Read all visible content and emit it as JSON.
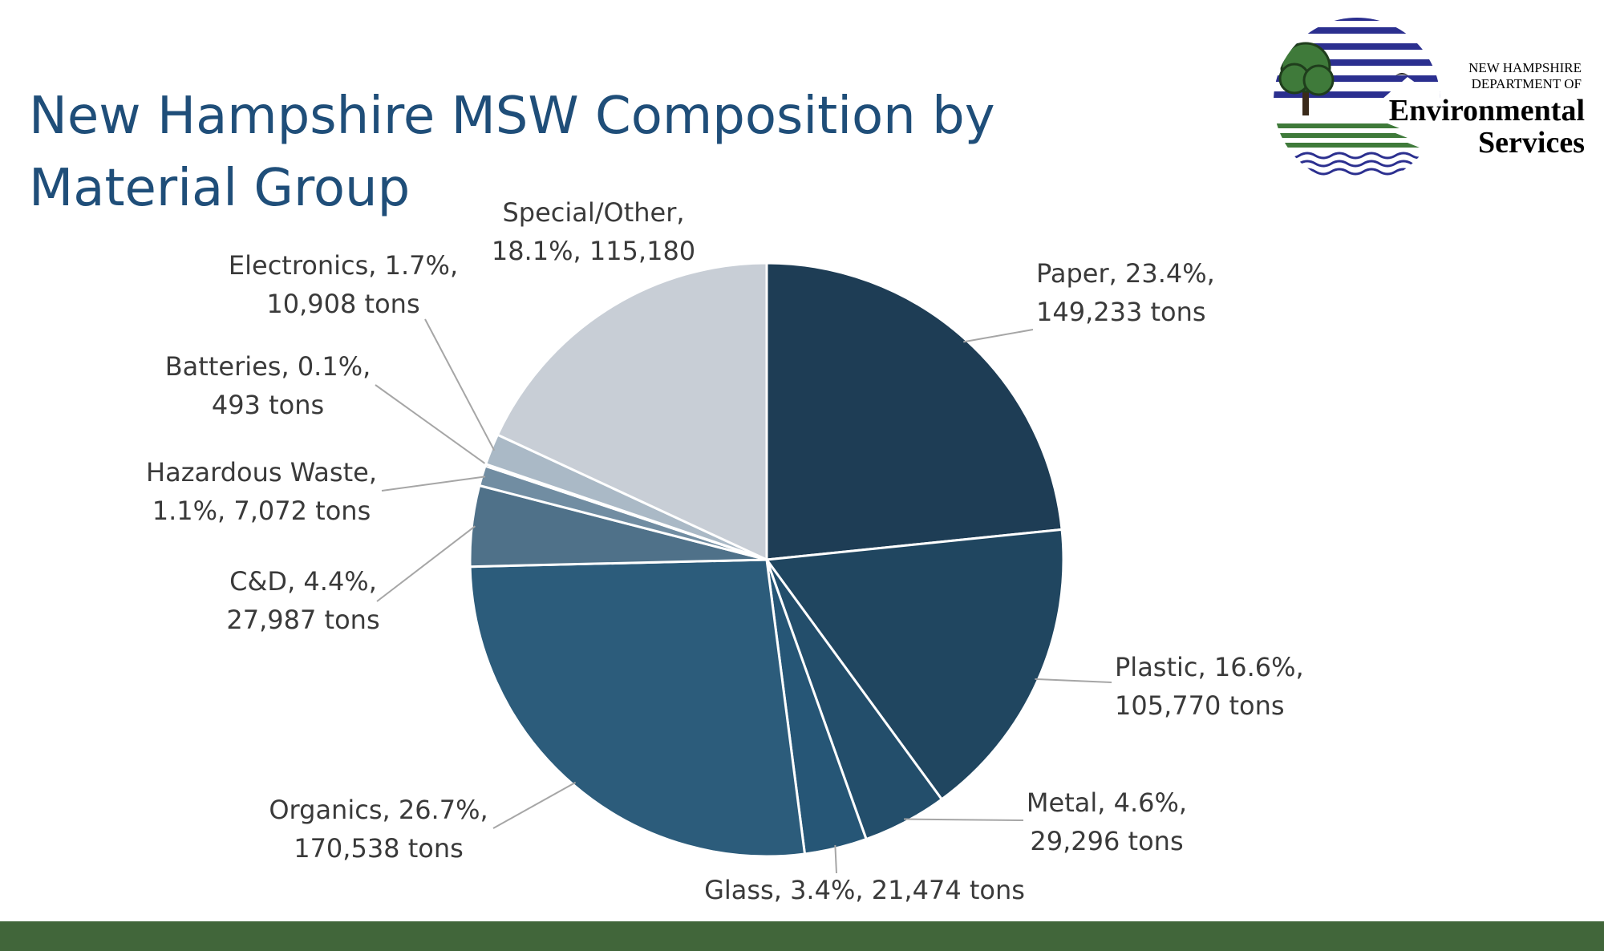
{
  "title_lines": [
    "New Hampshire MSW Composition by",
    "Material Group"
  ],
  "logo": {
    "line1": "NEW HAMPSHIRE",
    "line2": "DEPARTMENT OF",
    "line3": "Environmental",
    "line4": "Services"
  },
  "colors": {
    "title": "#1f4e79",
    "footer": "#41663a",
    "label_text": "#3a3a3a",
    "leader": "#a6a6a6"
  },
  "chart_data": {
    "type": "pie",
    "title": "",
    "start_angle_deg": 0,
    "direction": "clockwise",
    "slices": [
      {
        "name": "Paper",
        "percent": 23.4,
        "tons": 149233,
        "color": "#1e3d55",
        "label_lines": [
          "Paper, 23.4%,",
          "149,233 tons"
        ]
      },
      {
        "name": "Plastic",
        "percent": 16.6,
        "tons": 105770,
        "color": "#204660",
        "label_lines": [
          "Plastic, 16.6%,",
          "105,770 tons"
        ]
      },
      {
        "name": "Metal",
        "percent": 4.6,
        "tons": 29296,
        "color": "#234e6b",
        "label_lines": [
          "Metal, 4.6%,",
          "29,296 tons"
        ]
      },
      {
        "name": "Glass",
        "percent": 3.4,
        "tons": 21474,
        "color": "#265676",
        "label_lines": [
          "Glass, 3.4%, 21,474 tons"
        ]
      },
      {
        "name": "Organics",
        "percent": 26.7,
        "tons": 170538,
        "color": "#2c5c7b",
        "label_lines": [
          "Organics, 26.7%,",
          "170,538 tons"
        ]
      },
      {
        "name": "C&D",
        "percent": 4.4,
        "tons": 27987,
        "color": "#4f7189",
        "label_lines": [
          "C&D, 4.4%,",
          "27,987 tons"
        ]
      },
      {
        "name": "Hazardous Waste",
        "percent": 1.1,
        "tons": 7072,
        "color": "#718da2",
        "label_lines": [
          "Hazardous Waste,",
          "1.1%, 7,072 tons"
        ]
      },
      {
        "name": "Batteries",
        "percent": 0.1,
        "tons": 493,
        "color": "#8ea4b5",
        "label_lines": [
          "Batteries, 0.1%,",
          "493 tons"
        ]
      },
      {
        "name": "Electronics",
        "percent": 1.7,
        "tons": 10908,
        "color": "#aab9c6",
        "label_lines": [
          "Electronics, 1.7%,",
          "10,908 tons"
        ]
      },
      {
        "name": "Special/Other",
        "percent": 18.1,
        "tons": 115180,
        "color": "#c8ced6",
        "label_lines": [
          "Special/Other,",
          "18.1%, 115,180"
        ]
      }
    ]
  }
}
